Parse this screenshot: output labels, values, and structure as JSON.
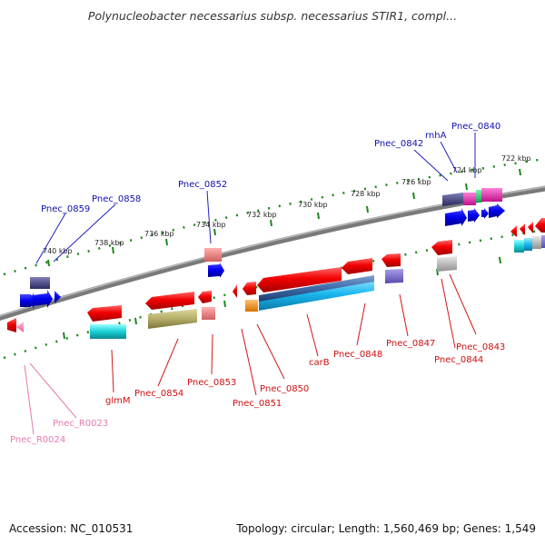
{
  "title": "Polynucleobacter necessarius subsp. necessarius STIR1, compl...",
  "footer": {
    "accession": "Accession: NC_010531",
    "summary": "Topology: circular; Length: 1,560,469 bp; Genes: 1,549"
  },
  "ruler_labels": [
    "722 kbp",
    "724 kbp",
    "726 kbp",
    "728 kbp",
    "730 kbp",
    "732 kbp",
    "734 kbp",
    "736 kbp",
    "738 kbp",
    "740 kbp"
  ],
  "gene_labels_top": [
    "Pnec_0840",
    "rnhA",
    "Pnec_0842",
    "Pnec_0852",
    "Pnec_0858",
    "Pnec_0859"
  ],
  "gene_labels_bottom": [
    "Pnec_0843",
    "Pnec_0844",
    "Pnec_0847",
    "Pnec_0848",
    "carB",
    "Pnec_0850",
    "Pnec_0851",
    "Pnec_0853",
    "Pnec_0854",
    "glmM"
  ],
  "rna_labels": [
    "Pnec_R0023",
    "Pnec_R0024"
  ],
  "colors": {
    "forward_gene": "#e01010",
    "reverse_gene": "#0000e0",
    "backbone": "#808080",
    "tick": "#1a8a1a",
    "top_label": "#1010b0",
    "bottom_label": "#cc1010",
    "rna_label": "#e87ab0"
  }
}
